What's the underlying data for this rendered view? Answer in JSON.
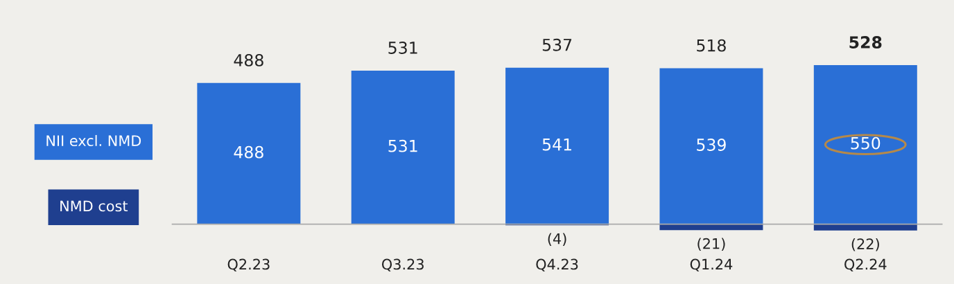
{
  "chart_data": {
    "type": "bar",
    "categories": [
      "Q2.23",
      "Q3.23",
      "Q4.23",
      "Q1.24",
      "Q2.24"
    ],
    "series": [
      {
        "name": "NII excl. NMD",
        "color": "#2a6fd6",
        "values": [
          488,
          531,
          541,
          539,
          550
        ],
        "value_labels": [
          "488",
          "531",
          "541",
          "539",
          "550"
        ]
      },
      {
        "name": "NMD cost",
        "color": "#1f3f8f",
        "values": [
          null,
          null,
          -4,
          -21,
          -22
        ],
        "value_labels": [
          null,
          null,
          "(4)",
          "(21)",
          "(22)"
        ]
      }
    ],
    "totals": [
      "488",
      "531",
      "537",
      "518",
      "528"
    ],
    "legend": "left",
    "grid": false
  }
}
